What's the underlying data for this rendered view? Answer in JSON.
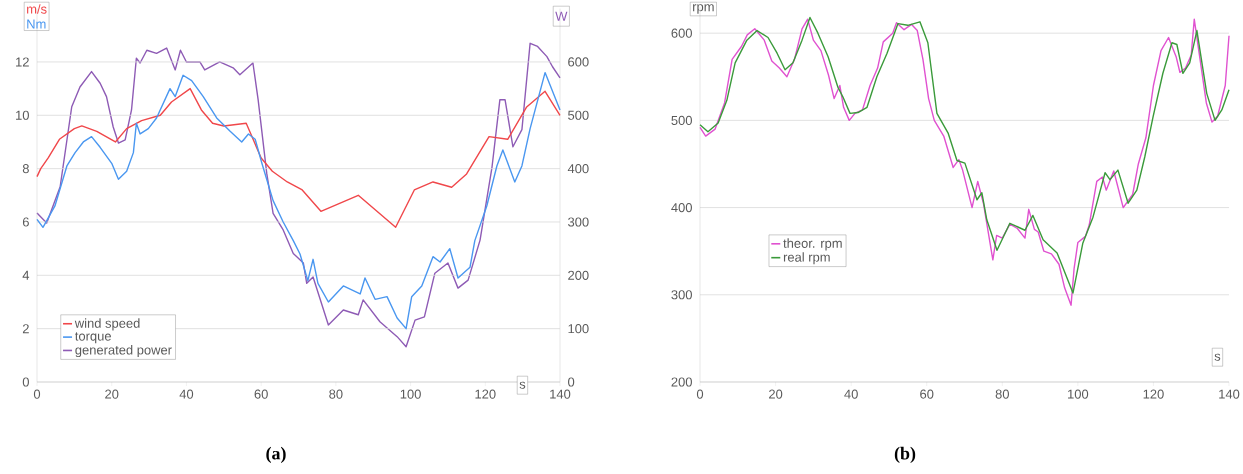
{
  "chart_data": [
    {
      "type": "line",
      "title": "(a)",
      "xlabel": "s",
      "ylabel": "m/s",
      "y2label": "W",
      "annotations": [
        "Nm"
      ],
      "xlim": [
        0,
        140
      ],
      "xticks": [
        0,
        20,
        40,
        60,
        80,
        100,
        120,
        140
      ],
      "ylim": [
        0,
        14
      ],
      "yticks": [
        0,
        2,
        4,
        6,
        8,
        10,
        12
      ],
      "y2lim": [
        0,
        700
      ],
      "y2ticks": [
        0,
        100,
        200,
        300,
        400,
        500,
        600
      ],
      "grid": "y",
      "legend": "bottom left",
      "series": [
        {
          "name": "wind speed",
          "color": "#f0474a",
          "x": [
            0,
            1,
            3,
            6,
            10,
            12,
            16,
            21,
            24,
            28,
            33,
            36,
            41,
            44,
            47,
            50,
            56,
            60,
            63,
            67,
            71,
            76,
            86,
            96,
            101,
            106,
            111,
            115,
            121,
            126,
            131,
            136,
            140
          ],
          "values": [
            7.7,
            8.0,
            8.4,
            9.1,
            9.5,
            9.6,
            9.4,
            9.0,
            9.5,
            9.8,
            10.0,
            10.5,
            11.0,
            10.2,
            9.7,
            9.6,
            9.7,
            8.4,
            7.9,
            7.5,
            7.2,
            6.4,
            7.0,
            5.8,
            7.2,
            7.5,
            7.3,
            7.8,
            9.2,
            9.1,
            10.3,
            10.9,
            10.0
          ]
        },
        {
          "name": "torque",
          "color": "#4a97f0",
          "x": [
            0,
            1.6,
            4.8,
            8,
            10.2,
            12.4,
            14.6,
            16.9,
            20,
            21.8,
            24,
            25.8,
            26.6,
            27.6,
            29.8,
            32,
            35.6,
            37,
            39.1,
            41.4,
            44.5,
            48.1,
            51.7,
            54.8,
            56.6,
            58.4,
            60.2,
            63.2,
            65.9,
            68.6,
            70.4,
            72.5,
            73.9,
            75.2,
            78,
            82,
            86.5,
            87.8,
            90.5,
            93.7,
            96.4,
            98.8,
            100.3,
            103,
            106,
            107.9,
            110.5,
            112.7,
            115.9,
            117.2,
            120.4,
            123.1,
            124.7,
            127.9,
            129.8,
            132,
            136,
            140
          ],
          "values": [
            6.1,
            5.8,
            6.6,
            8.1,
            8.6,
            9.0,
            9.2,
            8.8,
            8.2,
            7.6,
            7.9,
            8.6,
            9.7,
            9.3,
            9.5,
            9.9,
            11.0,
            10.7,
            11.5,
            11.3,
            10.7,
            9.9,
            9.4,
            9.0,
            9.3,
            9.1,
            8.2,
            6.8,
            6.0,
            5.3,
            4.8,
            3.8,
            4.6,
            3.7,
            3.0,
            3.6,
            3.3,
            3.9,
            3.1,
            3.2,
            2.4,
            2.0,
            3.2,
            3.6,
            4.7,
            4.5,
            5.0,
            3.9,
            4.3,
            5.3,
            6.6,
            8.1,
            8.7,
            7.5,
            8.1,
            9.5,
            11.6,
            10.2
          ]
        },
        {
          "name": "generated power",
          "color": "#8e5bb5",
          "axis": "y2",
          "x": [
            0,
            2.6,
            6.2,
            9.3,
            11.5,
            14.6,
            16.9,
            18.6,
            20.4,
            21.8,
            23.6,
            25.3,
            26.6,
            27.6,
            29.4,
            32,
            34.7,
            37,
            38.4,
            40,
            43.6,
            44.9,
            48.9,
            52.5,
            54.3,
            57.8,
            59.2,
            61.5,
            63.2,
            65.9,
            68.6,
            71.3,
            72.2,
            73.9,
            78,
            82,
            86,
            87.3,
            91.8,
            96.4,
            98.8,
            101.2,
            103.7,
            106.5,
            110,
            112.7,
            115.4,
            118.6,
            121.8,
            123.9,
            125.3,
            127.4,
            129.8,
            132,
            134,
            136.5,
            138,
            140
          ],
          "values": [
            317,
            298,
            366,
            516,
            553,
            582,
            560,
            535,
            478,
            448,
            454,
            510,
            607,
            598,
            622,
            616,
            626,
            585,
            622,
            600,
            600,
            585,
            600,
            589,
            576,
            598,
            529,
            391,
            316,
            285,
            241,
            223,
            185,
            197,
            107,
            135,
            126,
            154,
            113,
            85,
            66,
            116,
            122,
            204,
            223,
            176,
            191,
            266,
            403,
            529,
            529,
            441,
            473,
            635,
            629,
            610,
            591,
            570
          ]
        }
      ]
    },
    {
      "type": "line",
      "title": "(b)",
      "xlabel": "s",
      "ylabel": "rpm",
      "xlim": [
        0,
        140
      ],
      "xticks": [
        0,
        20,
        40,
        60,
        80,
        100,
        120,
        140
      ],
      "ylim": [
        200,
        630
      ],
      "yticks": [
        200,
        300,
        400,
        500,
        600
      ],
      "grid": "y",
      "legend": "left",
      "series": [
        {
          "name": "theor. rpm",
          "color": "#e052d0",
          "x": [
            0,
            1.5,
            4,
            6.5,
            8.5,
            11,
            12.5,
            14.5,
            17,
            19,
            21,
            23,
            25,
            27,
            28.5,
            30,
            32,
            34,
            35.5,
            37,
            38,
            39.5,
            41,
            43,
            45,
            47,
            48.5,
            51,
            52,
            54,
            56,
            57.5,
            59,
            60.5,
            62,
            64.5,
            67,
            68.5,
            69.5,
            72,
            73.5,
            75,
            77.5,
            78.5,
            80,
            82,
            84,
            86,
            87,
            88.5,
            89.5,
            91,
            93,
            95,
            96.5,
            98.2,
            99,
            100,
            102,
            103,
            105,
            106.5,
            107.5,
            109.5,
            112,
            114.5,
            116,
            118,
            120,
            122,
            124,
            126,
            127,
            128.5,
            130,
            130.8,
            132,
            134,
            135.5,
            137,
            139,
            140
          ],
          "values": [
            492,
            482,
            490,
            520,
            570,
            585,
            598,
            605,
            592,
            568,
            560,
            550,
            570,
            605,
            616,
            592,
            580,
            552,
            525,
            540,
            515,
            500,
            508,
            512,
            540,
            560,
            590,
            600,
            612,
            604,
            610,
            603,
            570,
            525,
            500,
            482,
            446,
            455,
            443,
            400,
            430,
            405,
            340,
            368,
            365,
            381,
            376,
            365,
            398,
            375,
            372,
            350,
            347,
            335,
            308,
            288,
            330,
            360,
            367,
            380,
            430,
            435,
            420,
            442,
            400,
            415,
            450,
            480,
            540,
            580,
            595,
            573,
            555,
            560,
            575,
            616,
            580,
            520,
            498,
            505,
            540,
            597
          ]
        },
        {
          "name": "real rpm",
          "color": "#3a9a3a",
          "x": [
            0,
            2.1,
            4.8,
            7.1,
            9.3,
            12.4,
            15.1,
            18,
            20.4,
            22.5,
            24.6,
            27,
            29.1,
            31.2,
            33.9,
            36.5,
            37.8,
            39.7,
            41.8,
            44.2,
            46.8,
            49.5,
            52.4,
            55,
            58.2,
            60.3,
            62.7,
            65.7,
            68,
            70.1,
            73.3,
            74.6,
            75.9,
            78.6,
            82,
            86,
            88.1,
            90.8,
            94.5,
            98.7,
            101.3,
            104,
            107.2,
            108.5,
            110.6,
            113.3,
            115.6,
            117.7,
            119.9,
            122.5,
            124.9,
            126.2,
            127.8,
            129.6,
            131.5,
            134.1,
            136.3,
            138.1,
            140
          ],
          "values": [
            495,
            487,
            497,
            523,
            566,
            592,
            603,
            595,
            577,
            558,
            566,
            592,
            618,
            600,
            573,
            538,
            527,
            508,
            509,
            515,
            550,
            577,
            611,
            609,
            613,
            589,
            508,
            485,
            454,
            451,
            409,
            417,
            386,
            351,
            382,
            374,
            391,
            363,
            348,
            302,
            359,
            389,
            440,
            432,
            443,
            405,
            420,
            458,
            504,
            554,
            589,
            587,
            554,
            566,
            603,
            531,
            500,
            512,
            535
          ]
        }
      ]
    }
  ]
}
